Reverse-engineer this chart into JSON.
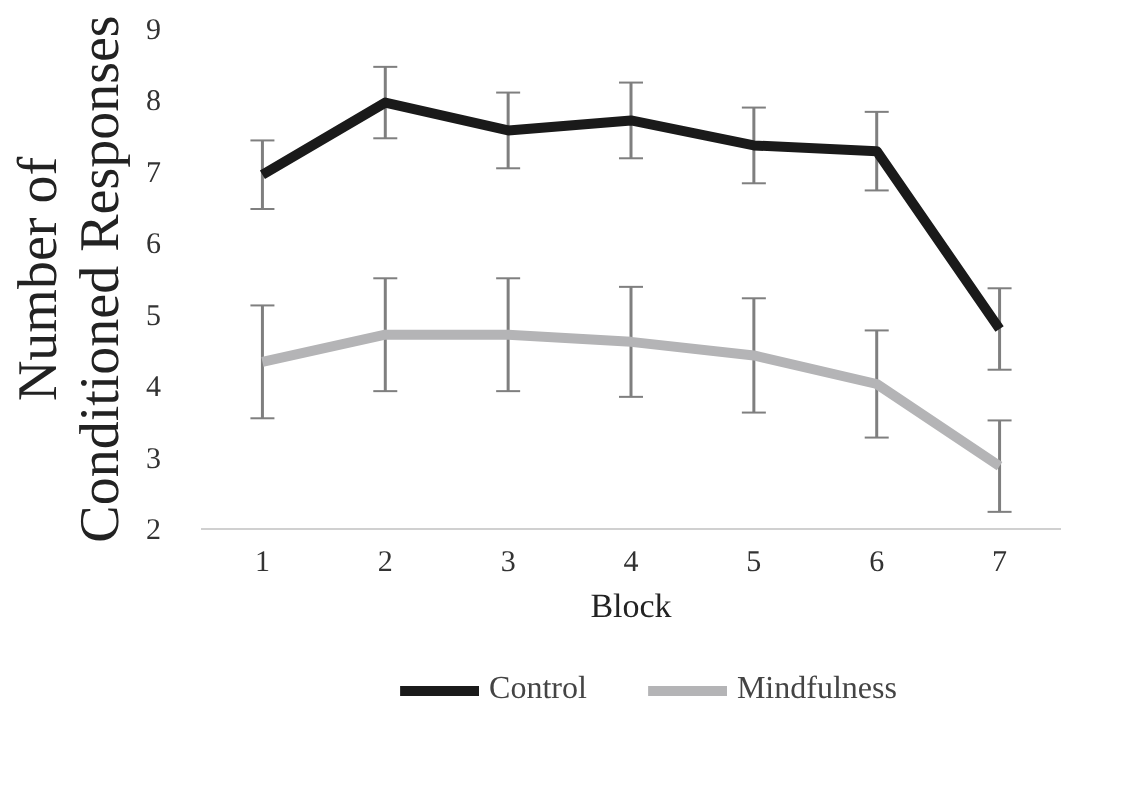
{
  "chart_data": {
    "type": "line",
    "xlabel": "Block",
    "ylabel": "Number of\nConditioned Responses",
    "categories": [
      "1",
      "2",
      "3",
      "4",
      "5",
      "6",
      "7"
    ],
    "series": [
      {
        "name": "Control",
        "color": "#1a1a1a",
        "values": [
          6.96,
          7.97,
          7.58,
          7.72,
          7.37,
          7.29,
          4.8
        ],
        "errors": [
          0.48,
          0.5,
          0.53,
          0.53,
          0.53,
          0.55,
          0.57
        ]
      },
      {
        "name": "Mindfulness",
        "color": "#b4b4b6",
        "values": [
          4.34,
          4.72,
          4.72,
          4.62,
          4.43,
          4.03,
          2.88
        ],
        "errors": [
          0.79,
          0.79,
          0.79,
          0.77,
          0.8,
          0.75,
          0.64
        ]
      }
    ],
    "ylim": [
      2,
      9
    ],
    "yticks": [
      2,
      3,
      4,
      5,
      6,
      7,
      8,
      9
    ],
    "grid": false,
    "legend": "bottom",
    "marker": "none",
    "line_style": "solid"
  }
}
